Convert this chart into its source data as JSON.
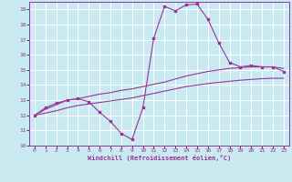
{
  "title": "",
  "xlabel": "Windchill (Refroidissement éolien,°C)",
  "ylabel": "",
  "bg_color": "#c8eaf0",
  "grid_color": "#ffffff",
  "line_color": "#993399",
  "xlim": [
    -0.5,
    23.5
  ],
  "ylim": [
    10,
    19.5
  ],
  "yticks": [
    10,
    11,
    12,
    13,
    14,
    15,
    16,
    17,
    18,
    19
  ],
  "xticks": [
    0,
    1,
    2,
    3,
    4,
    5,
    6,
    7,
    8,
    9,
    10,
    11,
    12,
    13,
    14,
    15,
    16,
    17,
    18,
    19,
    20,
    21,
    22,
    23
  ],
  "main_line_x": [
    0,
    1,
    2,
    3,
    4,
    5,
    6,
    7,
    8,
    9,
    10,
    11,
    12,
    13,
    14,
    15,
    16,
    17,
    18,
    19,
    20,
    21,
    22,
    23
  ],
  "main_line_y": [
    12.0,
    12.5,
    12.8,
    13.0,
    13.1,
    12.9,
    12.2,
    11.6,
    10.8,
    10.4,
    12.5,
    17.1,
    19.2,
    18.9,
    19.3,
    19.35,
    18.35,
    16.8,
    15.5,
    15.2,
    15.3,
    15.2,
    15.2,
    14.9
  ],
  "upper_smooth_x": [
    0,
    1,
    2,
    3,
    4,
    5,
    6,
    7,
    8,
    9,
    10,
    11,
    12,
    13,
    14,
    15,
    16,
    17,
    18,
    19,
    20,
    21,
    22,
    23
  ],
  "upper_smooth_y": [
    12.0,
    12.4,
    12.7,
    13.0,
    13.1,
    13.25,
    13.4,
    13.5,
    13.65,
    13.75,
    13.9,
    14.05,
    14.2,
    14.4,
    14.6,
    14.75,
    14.9,
    15.0,
    15.1,
    15.15,
    15.2,
    15.2,
    15.2,
    15.1
  ],
  "lower_smooth_x": [
    0,
    1,
    2,
    3,
    4,
    5,
    6,
    7,
    8,
    9,
    10,
    11,
    12,
    13,
    14,
    15,
    16,
    17,
    18,
    19,
    20,
    21,
    22,
    23
  ],
  "lower_smooth_y": [
    12.0,
    12.15,
    12.3,
    12.5,
    12.65,
    12.75,
    12.85,
    12.95,
    13.05,
    13.15,
    13.3,
    13.45,
    13.6,
    13.75,
    13.9,
    14.0,
    14.1,
    14.18,
    14.25,
    14.32,
    14.37,
    14.42,
    14.45,
    14.45
  ]
}
